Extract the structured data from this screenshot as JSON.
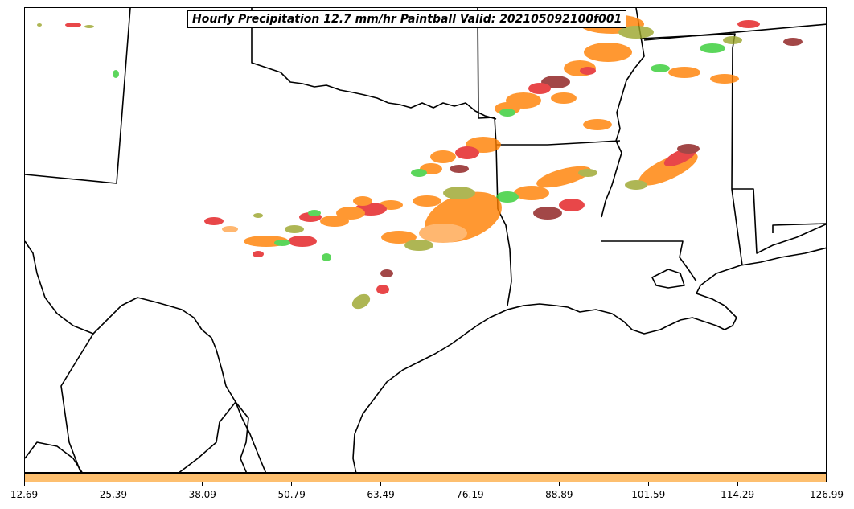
{
  "title": "Hourly Precipitation 12.7 mm/hr Paintball Valid: 202105092100f001",
  "colorbar": {
    "color": "#fdbf6f",
    "ticks": [
      "12.69",
      "25.39",
      "38.09",
      "50.79",
      "63.49",
      "76.19",
      "88.89",
      "101.59",
      "114.29",
      "126.99"
    ]
  },
  "map": {
    "region": "south-central-united-states",
    "paintball_colors": [
      "#ff7f00",
      "#e31a1c",
      "#33cc33",
      "#8b1a1a",
      "#9aa52a",
      "#ffa64d"
    ]
  }
}
